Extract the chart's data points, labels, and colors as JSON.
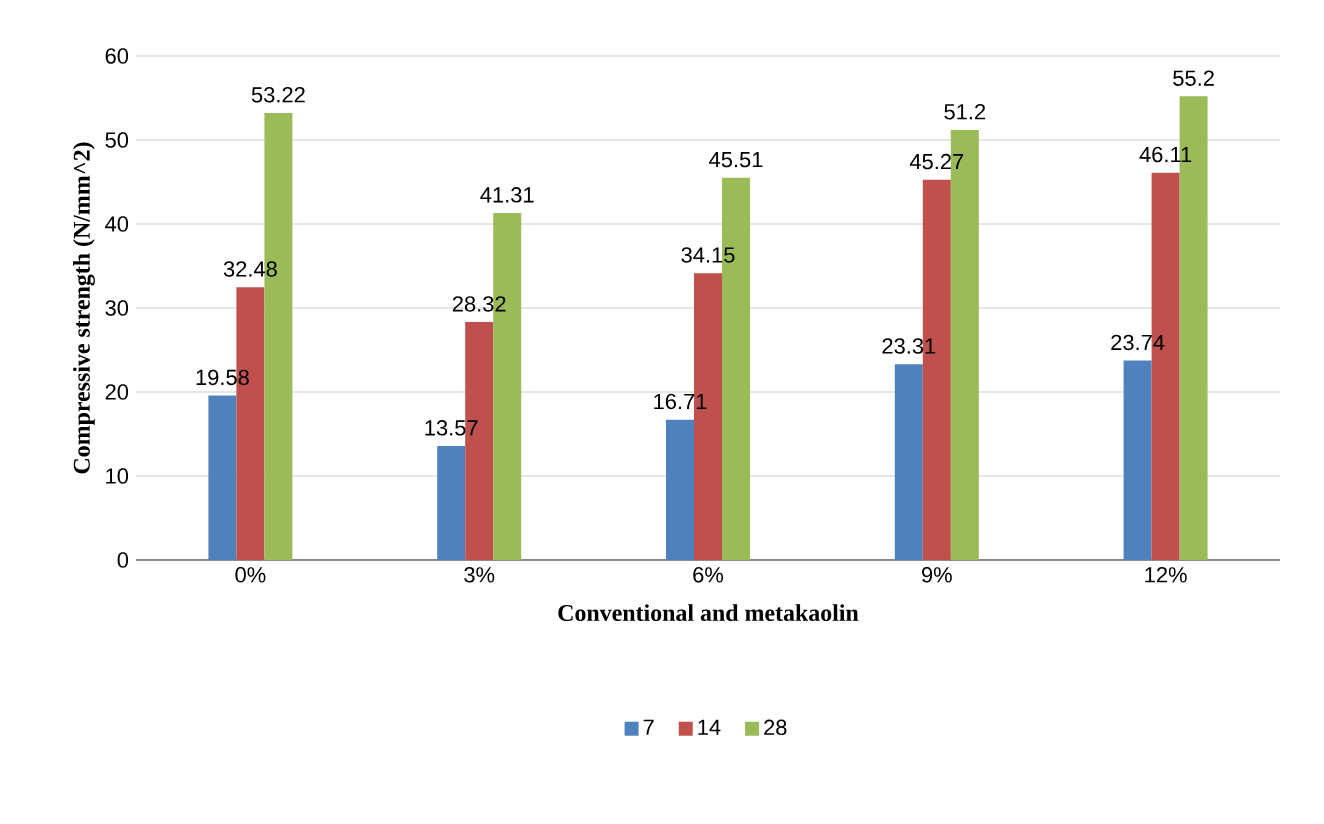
{
  "chart_data": {
    "type": "bar",
    "xlabel": "Conventional and metakaolin",
    "ylabel": "Compressive strength (N/mm^2)",
    "categories": [
      "0%",
      "3%",
      "6%",
      "9%",
      "12%"
    ],
    "series": [
      {
        "name": "7",
        "color": "#4f81bd",
        "values": [
          19.58,
          13.57,
          16.71,
          23.31,
          23.74
        ]
      },
      {
        "name": "14",
        "color": "#c0504d",
        "values": [
          32.48,
          28.32,
          34.15,
          45.27,
          46.11
        ]
      },
      {
        "name": "28",
        "color": "#9bbb59",
        "values": [
          53.22,
          41.31,
          45.51,
          51.2,
          55.2
        ]
      }
    ],
    "ylim": [
      0,
      60
    ],
    "yticks": [
      0,
      10,
      20,
      30,
      40,
      50,
      60
    ],
    "grid": "y",
    "legend": "bottom",
    "data_labels": true
  }
}
